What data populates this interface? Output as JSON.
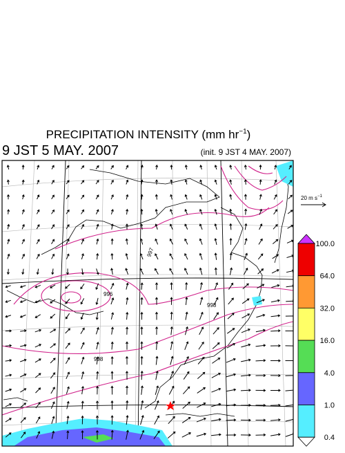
{
  "title": {
    "main": "PRECIPITATION INTENSITY (mm hr",
    "exponent": "−1",
    "close": ")"
  },
  "valid_time": "9 JST 5 MAY. 2007",
  "init_time": "(init. 9 JST 4 MAY. 2007)",
  "wind_reference": {
    "main": "20 m s",
    "exponent": "−1"
  },
  "colorbar": {
    "labels": [
      "100.0",
      "64.0",
      "32.0",
      "16.0",
      "4.0",
      "1.0",
      "0.4"
    ],
    "colors": [
      "#cc33ff",
      "#ee0000",
      "#ff9933",
      "#ffff66",
      "#55dd55",
      "#6666ff",
      "#55eeff",
      "#ffffff"
    ]
  },
  "contour_labels": [
    "997",
    "998",
    "996",
    "998"
  ]
}
